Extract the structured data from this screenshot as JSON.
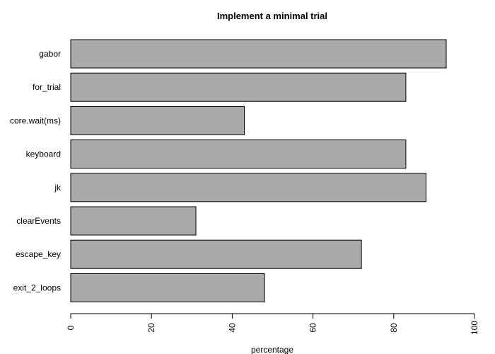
{
  "chart_data": {
    "type": "bar",
    "orientation": "horizontal",
    "title": "Implement a minimal trial",
    "xlabel": "percentage",
    "ylabel": "",
    "categories": [
      "gabor",
      "for_trial",
      "core.wait(ms)",
      "keyboard",
      "jk",
      "clearEvents",
      "escape_key",
      "exit_2_loops"
    ],
    "values": [
      93,
      83,
      43,
      83,
      88,
      31,
      72,
      48
    ],
    "xlim": [
      0,
      100
    ],
    "x_ticks": [
      0,
      20,
      40,
      60,
      80,
      100
    ],
    "bar_color": "#aaaaaa",
    "grid": false
  }
}
